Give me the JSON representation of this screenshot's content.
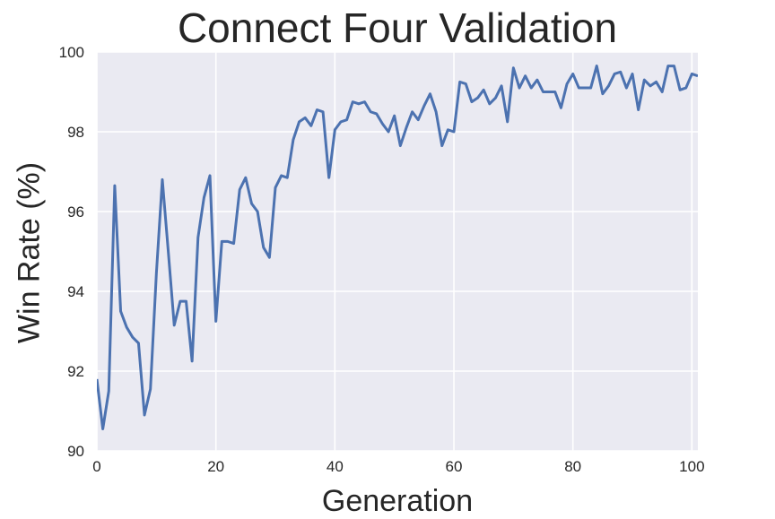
{
  "chart_data": {
    "type": "line",
    "title": "Connect Four Validation",
    "xlabel": "Generation",
    "ylabel": "Win Rate (%)",
    "xlim": [
      0,
      101
    ],
    "ylim": [
      90,
      100
    ],
    "x_ticks": [
      0,
      20,
      40,
      60,
      80,
      100
    ],
    "y_ticks": [
      90,
      92,
      94,
      96,
      98,
      100
    ],
    "grid": true,
    "colors": {
      "line": "#4c72b0",
      "plot_bg": "#eaeaf2",
      "grid": "#ffffff",
      "text": "#262626"
    },
    "series": [
      {
        "x": [
          0,
          1,
          2,
          3,
          4,
          5,
          6,
          7,
          8,
          9,
          10,
          11,
          12,
          13,
          14,
          15,
          16,
          17,
          18,
          19,
          20,
          21,
          22,
          23,
          24,
          25,
          26,
          27,
          28,
          29,
          30,
          31,
          32,
          33,
          34,
          35,
          36,
          37,
          38,
          39,
          40,
          41,
          42,
          43,
          44,
          45,
          46,
          47,
          48,
          49,
          50,
          51,
          52,
          53,
          54,
          55,
          56,
          57,
          58,
          59,
          60,
          61,
          62,
          63,
          64,
          65,
          66,
          67,
          68,
          69,
          70,
          71,
          72,
          73,
          74,
          75,
          76,
          77,
          78,
          79,
          80,
          81,
          82,
          83,
          84,
          85,
          86,
          87,
          88,
          89,
          90,
          91,
          92,
          93,
          94,
          95,
          96,
          97,
          98,
          99,
          100,
          101
        ],
        "values": [
          91.8,
          90.55,
          91.5,
          96.65,
          93.5,
          93.1,
          92.85,
          92.7,
          90.9,
          91.55,
          94.45,
          96.8,
          95.0,
          93.15,
          93.75,
          93.75,
          92.25,
          95.35,
          96.35,
          96.9,
          93.25,
          95.25,
          95.25,
          95.2,
          96.55,
          96.85,
          96.2,
          96.0,
          95.1,
          94.85,
          96.6,
          96.9,
          96.85,
          97.8,
          98.25,
          98.35,
          98.15,
          98.55,
          98.5,
          96.85,
          98.05,
          98.25,
          98.3,
          98.75,
          98.7,
          98.75,
          98.5,
          98.45,
          98.2,
          98.0,
          98.4,
          97.65,
          98.1,
          98.5,
          98.3,
          98.65,
          98.95,
          98.5,
          97.65,
          98.05,
          98.0,
          99.25,
          99.2,
          98.75,
          98.85,
          99.05,
          98.7,
          98.85,
          99.15,
          98.25,
          99.6,
          99.1,
          99.4,
          99.1,
          99.3,
          99.0,
          99.0,
          99.0,
          98.6,
          99.2,
          99.45,
          99.1,
          99.1,
          99.1,
          99.65,
          98.95,
          99.15,
          99.45,
          99.5,
          99.1,
          99.45,
          98.55,
          99.3,
          99.15,
          99.25,
          99.0,
          99.65,
          99.65,
          99.05,
          99.1,
          99.45,
          99.4
        ]
      }
    ]
  }
}
